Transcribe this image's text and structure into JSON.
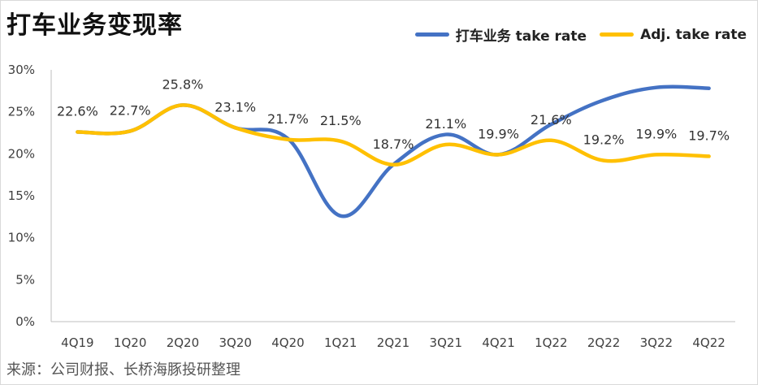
{
  "header": {
    "title": "打车业务变现率"
  },
  "footer": {
    "source": "来源：公司财报、长桥海豚投研整理"
  },
  "colors": {
    "series_blue": "#4472c4",
    "series_yellow": "#ffc000",
    "axis": "#bfbfbf"
  },
  "chart_data": {
    "type": "line",
    "title": "打车业务变现率",
    "categories": [
      "4Q19",
      "1Q20",
      "2Q20",
      "3Q20",
      "4Q20",
      "1Q21",
      "2Q21",
      "3Q21",
      "4Q21",
      "1Q22",
      "2Q22",
      "3Q22",
      "4Q22"
    ],
    "series": [
      {
        "name": "打车业务 take rate",
        "values": [
          22.6,
          22.7,
          25.8,
          23.1,
          21.8,
          12.6,
          18.7,
          22.3,
          19.9,
          23.5,
          26.4,
          27.9,
          27.8
        ]
      },
      {
        "name": "Adj. take rate",
        "values": [
          22.6,
          22.7,
          25.8,
          23.1,
          21.7,
          21.5,
          18.7,
          21.1,
          19.9,
          21.6,
          19.2,
          19.9,
          19.7
        ]
      }
    ],
    "data_labels": [
      "22.6%",
      "22.7%",
      "25.8%",
      "23.1%",
      "21.7%",
      "21.5%",
      "18.7%",
      "21.1%",
      "19.9%",
      "21.6%",
      "19.2%",
      "19.9%",
      "19.7%"
    ],
    "ylim": [
      0,
      30
    ],
    "yticks": [
      "0%",
      "5%",
      "10%",
      "15%",
      "20%",
      "25%",
      "30%"
    ],
    "xlabel": "",
    "ylabel": "",
    "grid": false,
    "legend_position": "top-right",
    "smooth": true
  }
}
